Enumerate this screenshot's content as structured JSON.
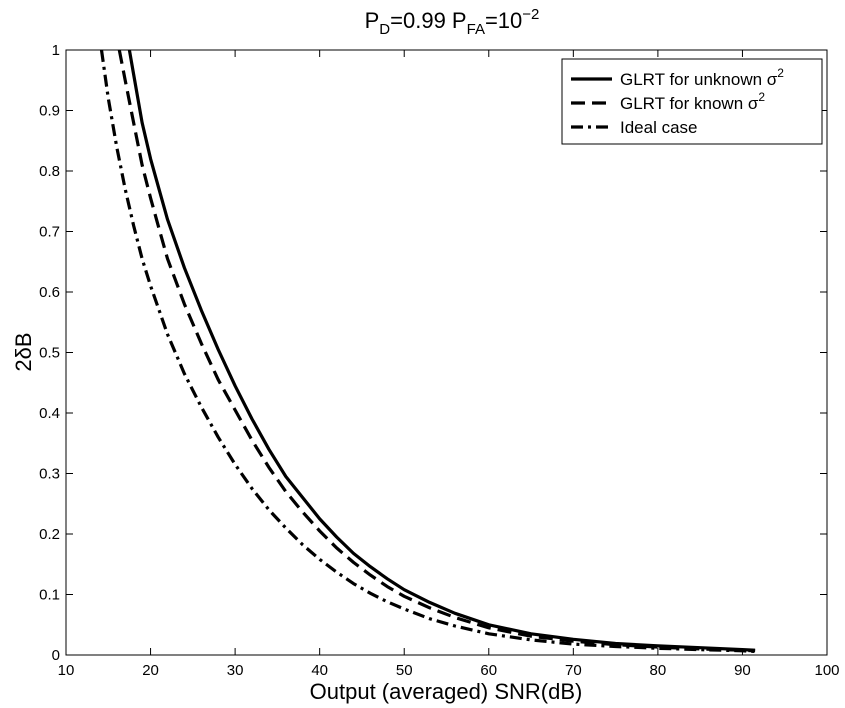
{
  "chart_data": {
    "type": "line",
    "title": {
      "p_d_label": "P",
      "p_d_sub": "D",
      "p_d_value": "=0.99 ",
      "p_fa_label": "P",
      "p_fa_sub": "FA",
      "p_fa_value": "=10",
      "p_fa_exp": "−2"
    },
    "xlabel": "Output (averaged) SNR(dB)",
    "ylabel": "2δB",
    "xlim": [
      10,
      100
    ],
    "ylim": [
      0,
      1
    ],
    "x_ticks": [
      10,
      20,
      30,
      40,
      50,
      60,
      70,
      80,
      90,
      100
    ],
    "y_ticks": [
      0,
      0.1,
      0.2,
      0.3,
      0.4,
      0.5,
      0.6,
      0.7,
      0.8,
      0.9,
      1
    ],
    "x_tick_labels": [
      "10",
      "20",
      "30",
      "40",
      "50",
      "60",
      "70",
      "80",
      "90",
      "100"
    ],
    "y_tick_labels": [
      "0",
      "0.1",
      "0.2",
      "0.3",
      "0.4",
      "0.5",
      "0.6",
      "0.7",
      "0.8",
      "0.9",
      "1"
    ],
    "grid": false,
    "legend_position": "top-right",
    "series": [
      {
        "name": "GLRT for unknown σ²",
        "legend_text": "GLRT for unknown σ",
        "legend_sup": "2",
        "style": "solid",
        "color": "#000000",
        "x": [
          17.5,
          18,
          19,
          20,
          21,
          22,
          24,
          26,
          28,
          30,
          32,
          34,
          36,
          38,
          40,
          42,
          44,
          46,
          48,
          50,
          53,
          56,
          60,
          65,
          70,
          75,
          80,
          85,
          90,
          91.5
        ],
        "y": [
          1.0,
          0.96,
          0.88,
          0.82,
          0.77,
          0.72,
          0.64,
          0.57,
          0.505,
          0.445,
          0.39,
          0.34,
          0.295,
          0.26,
          0.225,
          0.195,
          0.168,
          0.146,
          0.126,
          0.108,
          0.087,
          0.069,
          0.05,
          0.035,
          0.026,
          0.019,
          0.015,
          0.012,
          0.009,
          0.008
        ]
      },
      {
        "name": "GLRT for known σ²",
        "legend_text": "GLRT for known σ",
        "legend_sup": "2",
        "style": "dashed",
        "color": "#000000",
        "x": [
          16.3,
          17,
          18,
          19,
          20,
          21,
          22,
          24,
          26,
          28,
          30,
          32,
          34,
          36,
          38,
          40,
          42,
          44,
          46,
          48,
          50,
          53,
          56,
          60,
          65,
          70,
          75,
          80,
          85,
          90,
          91.5
        ],
        "y": [
          1.0,
          0.95,
          0.88,
          0.81,
          0.755,
          0.705,
          0.655,
          0.58,
          0.515,
          0.455,
          0.405,
          0.355,
          0.31,
          0.27,
          0.236,
          0.205,
          0.177,
          0.153,
          0.132,
          0.113,
          0.097,
          0.078,
          0.062,
          0.045,
          0.031,
          0.023,
          0.017,
          0.013,
          0.01,
          0.008,
          0.007
        ]
      },
      {
        "name": "Ideal case",
        "legend_text": "Ideal case",
        "legend_sup": "",
        "style": "dashdot",
        "color": "#000000",
        "x": [
          14.2,
          15,
          16,
          17,
          18,
          19,
          20,
          22,
          24,
          26,
          28,
          30,
          32,
          34,
          36,
          38,
          40,
          42,
          44,
          46,
          48,
          50,
          53,
          56,
          60,
          65,
          70,
          75,
          80,
          85,
          90,
          91.5
        ],
        "y": [
          1.0,
          0.92,
          0.84,
          0.77,
          0.71,
          0.655,
          0.61,
          0.53,
          0.465,
          0.41,
          0.36,
          0.315,
          0.275,
          0.24,
          0.21,
          0.182,
          0.158,
          0.137,
          0.118,
          0.102,
          0.088,
          0.076,
          0.06,
          0.048,
          0.035,
          0.025,
          0.018,
          0.014,
          0.011,
          0.009,
          0.007,
          0.006
        ]
      }
    ]
  }
}
